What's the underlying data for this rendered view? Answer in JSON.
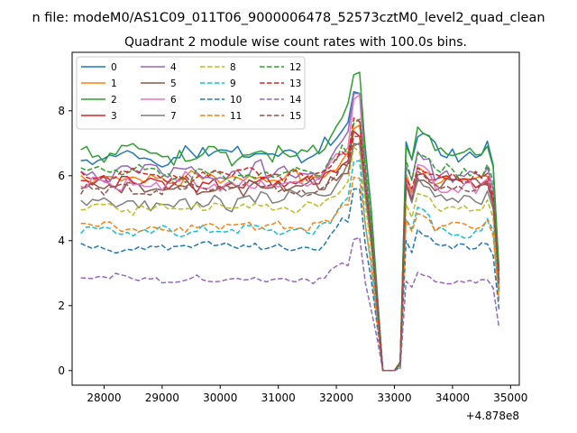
{
  "chart_data": {
    "type": "line",
    "suptitle": "n file: modeM0/AS1C09_011T06_9000006478_52573cztM0_level2_quad_clean",
    "title": "Quadrant 2 module wise count rates with 100.0s bins.",
    "xlabel": "",
    "ylabel": "",
    "x_offset_label": "+4.878e8",
    "xlim": [
      27450,
      35150
    ],
    "ylim": [
      -0.45,
      9.8
    ],
    "x_ticks": [
      28000,
      29000,
      30000,
      31000,
      32000,
      33000,
      34000,
      35000
    ],
    "x_tick_labels": [
      "28000",
      "29000",
      "30000",
      "31000",
      "32000",
      "33000",
      "34000",
      "35000"
    ],
    "y_ticks": [
      0,
      2,
      4,
      6,
      8
    ],
    "y_tick_labels": [
      "0",
      "2",
      "4",
      "6",
      "8"
    ],
    "grid": false,
    "legend_placement": "upper-left",
    "legend_columns": 4,
    "x_start": 27600,
    "x_step": 100,
    "n_points": 73,
    "dip_profile": {
      "x_values": [
        32300,
        32400,
        32500,
        32600,
        32700,
        32800,
        32900,
        33000,
        33100,
        33200,
        33300
      ],
      "level_fraction": [
        1.0,
        1.0,
        0.97,
        0.7,
        0.35,
        0.0,
        0.0,
        0.0,
        0.03,
        1.0,
        0.92
      ]
    },
    "tail_profile": {
      "x_values": [
        34600,
        34700,
        34800
      ],
      "level_fraction": [
        1.0,
        0.9,
        0.45
      ]
    },
    "series": [
      {
        "name": "0",
        "color": "#1f77b4",
        "style": "solid",
        "base": 6.7,
        "amp": 0.25,
        "peak": 8.6,
        "end": 7.0
      },
      {
        "name": "1",
        "color": "#ff7f0e",
        "style": "solid",
        "base": 5.9,
        "amp": 0.2,
        "peak": 7.5,
        "end": 6.0
      },
      {
        "name": "2",
        "color": "#2ca02c",
        "style": "solid",
        "base": 6.7,
        "amp": 0.25,
        "peak": 9.2,
        "end": 7.0
      },
      {
        "name": "3",
        "color": "#d62728",
        "style": "solid",
        "base": 5.8,
        "amp": 0.2,
        "peak": 7.3,
        "end": 5.8
      },
      {
        "name": "4",
        "color": "#9467bd",
        "style": "solid",
        "base": 6.1,
        "amp": 0.25,
        "peak": 8.5,
        "end": 6.3
      },
      {
        "name": "5",
        "color": "#8c564b",
        "style": "solid",
        "base": 5.6,
        "amp": 0.2,
        "peak": 7.0,
        "end": 5.7
      },
      {
        "name": "6",
        "color": "#e377c2",
        "style": "solid",
        "base": 5.7,
        "amp": 0.25,
        "peak": 8.4,
        "end": 5.9
      },
      {
        "name": "7",
        "color": "#7f7f7f",
        "style": "solid",
        "base": 5.3,
        "amp": 0.25,
        "peak": 7.0,
        "end": 5.6
      },
      {
        "name": "8",
        "color": "#bcbd22",
        "style": "dashed",
        "base": 5.0,
        "amp": 0.15,
        "peak": 6.8,
        "end": 5.2
      },
      {
        "name": "9",
        "color": "#17becf",
        "style": "dashed",
        "base": 4.3,
        "amp": 0.15,
        "peak": 6.4,
        "end": 4.7
      },
      {
        "name": "10",
        "color": "#1f77b4",
        "style": "dashed",
        "base": 3.8,
        "amp": 0.12,
        "peak": 5.6,
        "end": 4.0
      },
      {
        "name": "11",
        "color": "#ff7f0e",
        "style": "dashed",
        "base": 4.4,
        "amp": 0.15,
        "peak": 6.0,
        "end": 4.6
      },
      {
        "name": "12",
        "color": "#2ca02c",
        "style": "dashed",
        "base": 6.1,
        "amp": 0.2,
        "peak": 7.7,
        "end": 6.4
      },
      {
        "name": "13",
        "color": "#d62728",
        "style": "dashed",
        "base": 6.0,
        "amp": 0.2,
        "peak": 7.7,
        "end": 6.0
      },
      {
        "name": "14",
        "color": "#9467bd",
        "style": "dashed",
        "base": 2.8,
        "amp": 0.12,
        "peak": 4.0,
        "end": 2.8
      },
      {
        "name": "15",
        "color": "#8c564b",
        "style": "dashed",
        "base": 5.6,
        "amp": 0.2,
        "peak": 7.2,
        "end": 5.8
      }
    ]
  }
}
